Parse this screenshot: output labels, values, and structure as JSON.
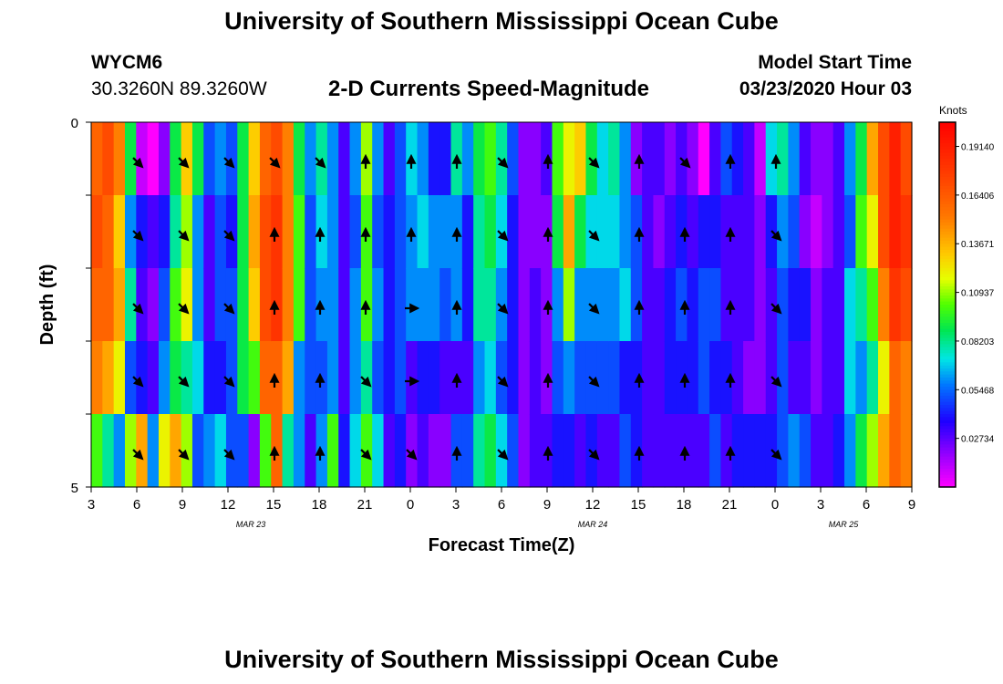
{
  "header": {
    "title": "University of Southern Mississippi Ocean Cube",
    "station_id": "WYCM6",
    "coordinates": "30.3260N 89.3260W",
    "plot_title": "2-D Currents Speed-Magnitude",
    "model_start_label": "Model Start Time",
    "model_start_value": "03/23/2020 Hour 03"
  },
  "footer": {
    "title": "University of Southern Mississippi Ocean Cube"
  },
  "chart_data": {
    "type": "heatmap",
    "title": "2-D Currents Speed-Magnitude",
    "xlabel": "Forecast Time(Z)",
    "ylabel": "Depth (ft)",
    "x_ticks": [
      "3",
      "6",
      "9",
      "12",
      "15",
      "18",
      "21",
      "0",
      "3",
      "6",
      "9",
      "12",
      "15",
      "18",
      "21",
      "0",
      "3",
      "6",
      "9"
    ],
    "day_labels": [
      {
        "label": "MAR 23",
        "hour_offset": 10.5
      },
      {
        "label": "MAR 24",
        "hour_offset": 33
      },
      {
        "label": "MAR 25",
        "hour_offset": 49.5
      }
    ],
    "y_ticks": [
      "0",
      "5"
    ],
    "ylim": [
      0,
      5
    ],
    "xlim_hours": [
      0,
      54
    ],
    "colorbar": {
      "unit": "Knots",
      "ticks": [
        "0.19140",
        "0.16406",
        "0.13671",
        "0.10937",
        "0.08203",
        "0.05468",
        "0.02734"
      ],
      "min": 0.0,
      "max": 0.205
    },
    "depth_rows": 5,
    "speed_knots_columns": [
      [
        0.16,
        0.17,
        0.16,
        0.15,
        0.1
      ],
      [
        0.17,
        0.16,
        0.16,
        0.14,
        0.08
      ],
      [
        0.15,
        0.13,
        0.14,
        0.12,
        0.06
      ],
      [
        0.09,
        0.06,
        0.08,
        0.05,
        0.11
      ],
      [
        0.01,
        0.04,
        0.03,
        0.04,
        0.14
      ],
      [
        0.0,
        0.03,
        0.02,
        0.03,
        0.06
      ],
      [
        0.02,
        0.04,
        0.05,
        0.06,
        0.12
      ],
      [
        0.09,
        0.08,
        0.1,
        0.09,
        0.14
      ],
      [
        0.13,
        0.11,
        0.12,
        0.08,
        0.11
      ],
      [
        0.09,
        0.06,
        0.06,
        0.07,
        0.05
      ],
      [
        0.05,
        0.03,
        0.03,
        0.04,
        0.06
      ],
      [
        0.06,
        0.05,
        0.05,
        0.04,
        0.07
      ],
      [
        0.05,
        0.04,
        0.05,
        0.05,
        0.05
      ],
      [
        0.09,
        0.09,
        0.09,
        0.09,
        0.05
      ],
      [
        0.13,
        0.14,
        0.13,
        0.1,
        0.02
      ],
      [
        0.16,
        0.17,
        0.17,
        0.16,
        0.1
      ],
      [
        0.17,
        0.18,
        0.18,
        0.16,
        0.16
      ],
      [
        0.15,
        0.15,
        0.15,
        0.14,
        0.08
      ],
      [
        0.09,
        0.1,
        0.1,
        0.06,
        0.06
      ],
      [
        0.06,
        0.05,
        0.05,
        0.05,
        0.03
      ],
      [
        0.08,
        0.07,
        0.06,
        0.05,
        0.06
      ],
      [
        0.06,
        0.06,
        0.06,
        0.06,
        0.1
      ],
      [
        0.03,
        0.03,
        0.03,
        0.03,
        0.04
      ],
      [
        0.06,
        0.05,
        0.06,
        0.06,
        0.07
      ],
      [
        0.11,
        0.1,
        0.1,
        0.08,
        0.1
      ],
      [
        0.06,
        0.05,
        0.06,
        0.05,
        0.07
      ],
      [
        0.03,
        0.04,
        0.04,
        0.04,
        0.03
      ],
      [
        0.05,
        0.05,
        0.05,
        0.05,
        0.04
      ],
      [
        0.07,
        0.06,
        0.06,
        0.03,
        0.02
      ],
      [
        0.06,
        0.07,
        0.06,
        0.04,
        0.03
      ],
      [
        0.04,
        0.06,
        0.06,
        0.04,
        0.02
      ],
      [
        0.04,
        0.06,
        0.05,
        0.03,
        0.02
      ],
      [
        0.08,
        0.06,
        0.06,
        0.03,
        0.05
      ],
      [
        0.06,
        0.04,
        0.04,
        0.03,
        0.05
      ],
      [
        0.09,
        0.08,
        0.08,
        0.06,
        0.08
      ],
      [
        0.1,
        0.09,
        0.08,
        0.07,
        0.09
      ],
      [
        0.08,
        0.07,
        0.06,
        0.05,
        0.07
      ],
      [
        0.05,
        0.04,
        0.04,
        0.04,
        0.05
      ],
      [
        0.02,
        0.02,
        0.02,
        0.02,
        0.02
      ],
      [
        0.02,
        0.02,
        0.03,
        0.03,
        0.03
      ],
      [
        0.03,
        0.02,
        0.02,
        0.02,
        0.03
      ],
      [
        0.1,
        0.09,
        0.06,
        0.05,
        0.04
      ],
      [
        0.12,
        0.14,
        0.11,
        0.06,
        0.04
      ],
      [
        0.13,
        0.09,
        0.06,
        0.05,
        0.03
      ],
      [
        0.09,
        0.07,
        0.06,
        0.05,
        0.04
      ],
      [
        0.07,
        0.07,
        0.06,
        0.05,
        0.03
      ],
      [
        0.08,
        0.07,
        0.06,
        0.05,
        0.03
      ],
      [
        0.06,
        0.06,
        0.07,
        0.04,
        0.05
      ],
      [
        0.02,
        0.05,
        0.05,
        0.04,
        0.04
      ],
      [
        0.03,
        0.03,
        0.03,
        0.03,
        0.03
      ],
      [
        0.03,
        0.02,
        0.03,
        0.03,
        0.03
      ],
      [
        0.02,
        0.03,
        0.04,
        0.04,
        0.03
      ],
      [
        0.03,
        0.04,
        0.05,
        0.04,
        0.03
      ],
      [
        0.02,
        0.03,
        0.04,
        0.04,
        0.03
      ],
      [
        0.0,
        0.04,
        0.05,
        0.05,
        0.03
      ],
      [
        0.03,
        0.04,
        0.05,
        0.04,
        0.05
      ],
      [
        0.05,
        0.03,
        0.03,
        0.04,
        0.03
      ],
      [
        0.04,
        0.03,
        0.03,
        0.03,
        0.04
      ],
      [
        0.03,
        0.03,
        0.03,
        0.02,
        0.04
      ],
      [
        0.01,
        0.02,
        0.02,
        0.02,
        0.04
      ],
      [
        0.07,
        0.04,
        0.03,
        0.03,
        0.04
      ],
      [
        0.08,
        0.06,
        0.05,
        0.05,
        0.05
      ],
      [
        0.06,
        0.05,
        0.04,
        0.03,
        0.06
      ],
      [
        0.03,
        0.02,
        0.04,
        0.03,
        0.05
      ],
      [
        0.02,
        0.01,
        0.02,
        0.02,
        0.03
      ],
      [
        0.02,
        0.02,
        0.03,
        0.03,
        0.03
      ],
      [
        0.03,
        0.03,
        0.03,
        0.03,
        0.04
      ],
      [
        0.06,
        0.05,
        0.07,
        0.07,
        0.06
      ],
      [
        0.09,
        0.1,
        0.08,
        0.06,
        0.09
      ],
      [
        0.14,
        0.12,
        0.1,
        0.08,
        0.11
      ],
      [
        0.17,
        0.17,
        0.15,
        0.12,
        0.14
      ],
      [
        0.19,
        0.19,
        0.18,
        0.16,
        0.16
      ],
      [
        0.17,
        0.18,
        0.17,
        0.15,
        0.15
      ]
    ],
    "direction_deg_rows": [
      [
        135,
        135,
        135,
        135,
        135,
        0,
        0,
        0,
        135,
        0,
        135,
        0,
        135,
        0,
        0
      ],
      [
        135,
        135,
        135,
        0,
        0,
        0,
        0,
        0,
        135,
        0,
        135,
        0,
        0,
        0,
        135
      ],
      [
        135,
        135,
        135,
        0,
        0,
        0,
        90,
        0,
        135,
        0,
        135,
        0,
        0,
        0,
        135
      ],
      [
        135,
        135,
        135,
        0,
        0,
        135,
        90,
        0,
        135,
        0,
        135,
        0,
        0,
        0,
        135
      ],
      [
        135,
        135,
        135,
        0,
        0,
        135,
        135,
        0,
        135,
        0,
        135,
        0,
        0,
        0,
        135
      ]
    ]
  }
}
